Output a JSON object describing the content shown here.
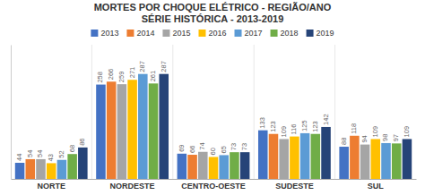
{
  "chart_data": {
    "type": "bar",
    "title": "MORTES POR CHOQUE ELÉTRICO - REGIÃO/ANO",
    "subtitle": "SÉRIE HISTÓRICA - 2013-2019",
    "categories": [
      "NORTE",
      "NORDESTE",
      "CENTRO-OESTE",
      "SUDESTE",
      "SUL"
    ],
    "series": [
      {
        "name": "2013",
        "color": "#4472c4",
        "values": [
          44,
          258,
          69,
          133,
          88
        ]
      },
      {
        "name": "2014",
        "color": "#ed7d31",
        "values": [
          54,
          266,
          66,
          123,
          118
        ]
      },
      {
        "name": "2015",
        "color": "#a5a5a5",
        "values": [
          54,
          259,
          74,
          109,
          94
        ]
      },
      {
        "name": "2016",
        "color": "#ffc000",
        "values": [
          43,
          271,
          60,
          116,
          109
        ]
      },
      {
        "name": "2017",
        "color": "#5b9bd5",
        "values": [
          52,
          287,
          65,
          125,
          98
        ]
      },
      {
        "name": "2018",
        "color": "#70ad47",
        "values": [
          68,
          261,
          73,
          123,
          97
        ]
      },
      {
        "name": "2019",
        "color": "#264478",
        "values": [
          86,
          287,
          73,
          142,
          109
        ]
      }
    ],
    "ylim": [
      0,
      367
    ],
    "yticks": [],
    "grid": false,
    "legend": "top",
    "data_labels": true,
    "tick_labels": "x"
  }
}
